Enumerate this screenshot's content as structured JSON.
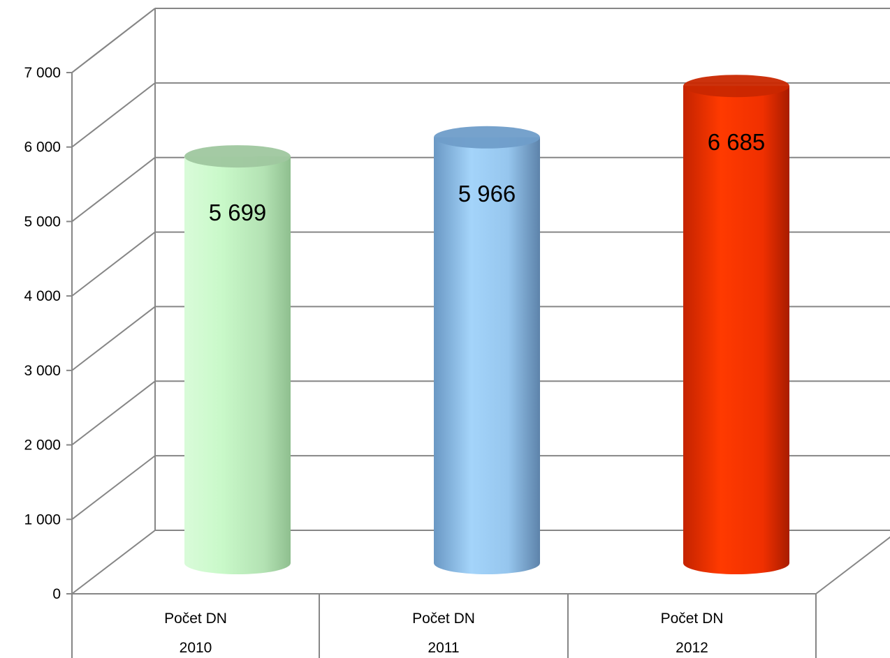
{
  "chart_data": {
    "type": "bar",
    "style": "3d-cylinder",
    "categories": [
      {
        "top": "Počet DN",
        "bottom": "2010"
      },
      {
        "top": "Počet DN",
        "bottom": "2011"
      },
      {
        "top": "Počet DN",
        "bottom": "2012"
      }
    ],
    "values": [
      5699,
      5966,
      6685
    ],
    "data_labels": [
      "5 699",
      "5 966",
      "6 685"
    ],
    "ylim": [
      0,
      7000
    ],
    "yticks": [
      0,
      1000,
      2000,
      3000,
      4000,
      5000,
      6000,
      7000
    ],
    "ytick_labels": [
      "0",
      "1 000",
      "2 000",
      "3 000",
      "4 000",
      "5 000",
      "6 000",
      "7 000"
    ],
    "grid": true,
    "legend": "none",
    "colors": {
      "2010": "#c8f7c8",
      "2011": "#9fd0f5",
      "2012": "#ff3300",
      "grid": "#868686"
    }
  }
}
